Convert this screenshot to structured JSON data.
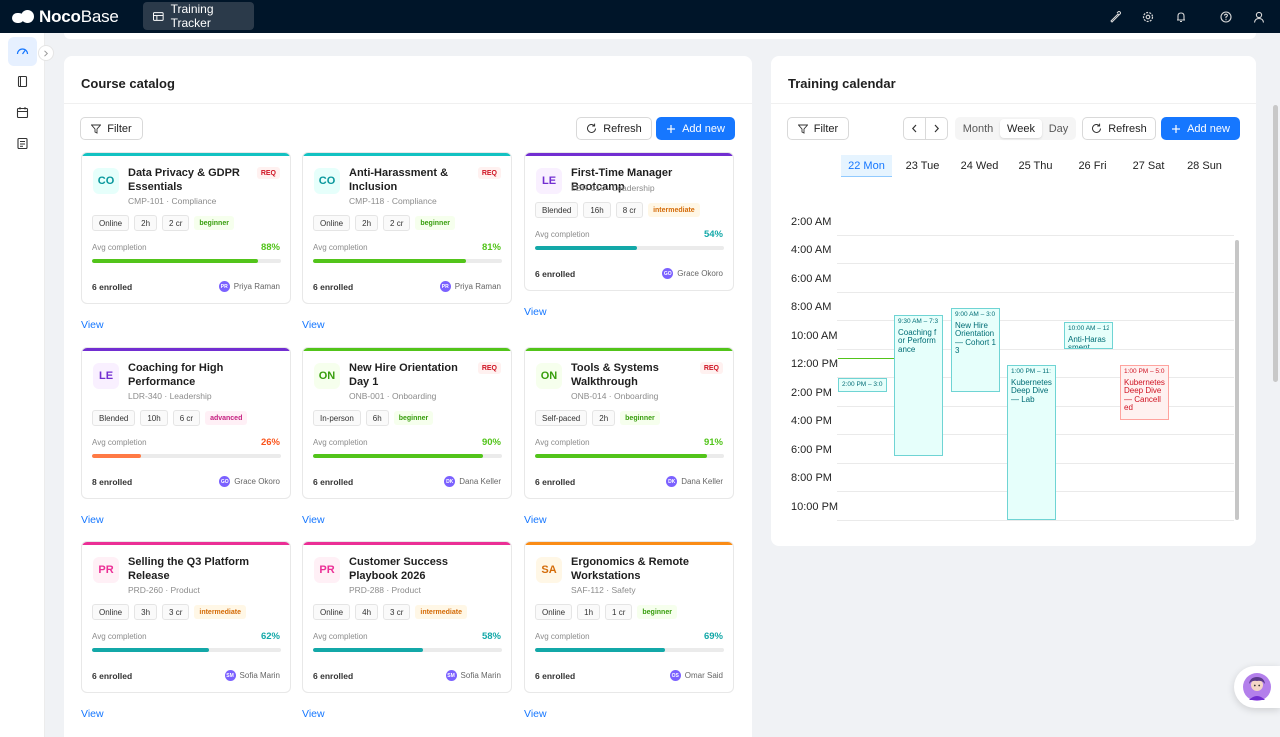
{
  "brand": {
    "name_bold": "Noco",
    "name_light": "Base"
  },
  "app_tab": {
    "label": "Training Tracker"
  },
  "catalog": {
    "title": "Course catalog",
    "filter_label": "Filter",
    "refresh_label": "Refresh",
    "add_label": "Add new",
    "avg_label": "Avg completion",
    "view_label": "View",
    "courses": [
      {
        "abbr": "CO",
        "title": "Data Privacy & GDPR Essentials",
        "required": "REQ",
        "code": "CMP-101 · Compliance",
        "format": "Online",
        "hours": "2h",
        "credits": "2 cr",
        "level": "beginner",
        "completion": "88%",
        "completion_value": 88,
        "enrolled": "6 enrolled",
        "instructor_initials": "PR",
        "instructor": "Priya Raman",
        "color": "#13c2c2"
      },
      {
        "abbr": "CO",
        "title": "Anti-Harassment & Inclusion",
        "required": "REQ",
        "code": "CMP-118 · Compliance",
        "format": "Online",
        "hours": "2h",
        "credits": "2 cr",
        "level": "beginner",
        "completion": "81%",
        "completion_value": 81,
        "enrolled": "6 enrolled",
        "instructor_initials": "PR",
        "instructor": "Priya Raman",
        "color": "#13c2c2"
      },
      {
        "abbr": "LE",
        "title": "First-Time Manager Bootcamp",
        "required": "",
        "code": "LDR-310 · Leadership",
        "format": "Blended",
        "hours": "16h",
        "credits": "8 cr",
        "level": "intermediate",
        "completion": "54%",
        "completion_value": 54,
        "enrolled": "6 enrolled",
        "instructor_initials": "GO",
        "instructor": "Grace Okoro",
        "color": "#722ed1"
      },
      {
        "abbr": "LE",
        "title": "Coaching for High Performance",
        "required": "",
        "code": "LDR-340 · Leadership",
        "format": "Blended",
        "hours": "10h",
        "credits": "6 cr",
        "level": "advanced",
        "completion": "26%",
        "completion_value": 26,
        "enrolled": "8 enrolled",
        "instructor_initials": "GO",
        "instructor": "Grace Okoro",
        "color": "#722ed1"
      },
      {
        "abbr": "ON",
        "title": "New Hire Orientation Day 1",
        "required": "REQ",
        "code": "ONB-001 · Onboarding",
        "format": "In-person",
        "hours": "6h",
        "credits": "",
        "level": "beginner",
        "completion": "90%",
        "completion_value": 90,
        "enrolled": "6 enrolled",
        "instructor_initials": "DK",
        "instructor": "Dana Keller",
        "color": "#52c41a"
      },
      {
        "abbr": "ON",
        "title": "Tools & Systems Walkthrough",
        "required": "REQ",
        "code": "ONB-014 · Onboarding",
        "format": "Self-paced",
        "hours": "2h",
        "credits": "",
        "level": "beginner",
        "completion": "91%",
        "completion_value": 91,
        "enrolled": "6 enrolled",
        "instructor_initials": "DK",
        "instructor": "Dana Keller",
        "color": "#52c41a"
      },
      {
        "abbr": "PR",
        "title": "Selling the Q3 Platform Release",
        "required": "",
        "code": "PRD-260 · Product",
        "format": "Online",
        "hours": "3h",
        "credits": "3 cr",
        "level": "intermediate",
        "completion": "62%",
        "completion_value": 62,
        "enrolled": "6 enrolled",
        "instructor_initials": "SM",
        "instructor": "Sofia Marin",
        "color": "#eb2f96"
      },
      {
        "abbr": "PR",
        "title": "Customer Success Playbook 2026",
        "required": "",
        "code": "PRD-288 · Product",
        "format": "Online",
        "hours": "4h",
        "credits": "3 cr",
        "level": "intermediate",
        "completion": "58%",
        "completion_value": 58,
        "enrolled": "6 enrolled",
        "instructor_initials": "SM",
        "instructor": "Sofia Marin",
        "color": "#eb2f96"
      },
      {
        "abbr": "SA",
        "title": "Ergonomics & Remote Workstations",
        "required": "",
        "code": "SAF-112 · Safety",
        "format": "Online",
        "hours": "1h",
        "credits": "1 cr",
        "level": "beginner",
        "completion": "69%",
        "completion_value": 69,
        "enrolled": "6 enrolled",
        "instructor_initials": "OS",
        "instructor": "Omar Said",
        "color": "#fa8c16"
      }
    ]
  },
  "calendar": {
    "title": "Training calendar",
    "filter_label": "Filter",
    "views": [
      "Month",
      "Week",
      "Day"
    ],
    "active_view": "Week",
    "refresh_label": "Refresh",
    "add_label": "Add new",
    "days": [
      "22 Mon",
      "23 Tue",
      "24 Wed",
      "25 Thu",
      "26 Fri",
      "27 Sat",
      "28 Sun"
    ],
    "times": [
      "2:00 AM",
      "4:00 AM",
      "6:00 AM",
      "8:00 AM",
      "10:00 AM",
      "12:00 PM",
      "2:00 PM",
      "4:00 PM",
      "6:00 PM",
      "8:00 PM",
      "10:00 PM"
    ],
    "events": [
      {
        "time": "2:00 PM – 3:0",
        "name": "",
        "status": "scheduled"
      },
      {
        "time": "9:30 AM – 7:3",
        "name": "Coaching for Performance",
        "status": "scheduled"
      },
      {
        "time": "9:00 AM – 3:0",
        "name": "New Hire Orientation — Cohort 13",
        "status": "scheduled"
      },
      {
        "time": "1:00 PM – 11:",
        "name": "Kubernetes Deep Dive — Lab",
        "status": "scheduled"
      },
      {
        "time": "10:00 AM – 12",
        "name": "Anti-Harassment",
        "status": "scheduled"
      },
      {
        "time": "1:00 PM – 5:0",
        "name": "Kubernetes Deep Dive — Cancelled",
        "status": "cancelled"
      }
    ]
  },
  "colors": {
    "accent": "#1677ff",
    "header": "#001529"
  }
}
